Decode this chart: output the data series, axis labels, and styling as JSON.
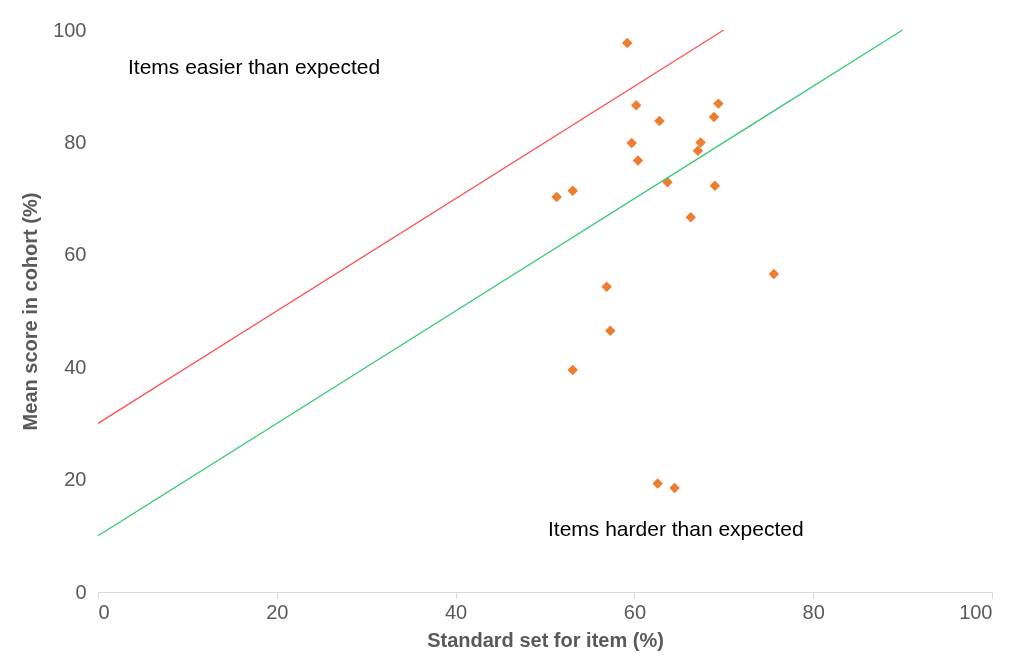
{
  "chart_data": {
    "type": "scatter",
    "xlabel": "Standard set for item (%)",
    "ylabel": "Mean score in cohort (%)",
    "xlim": [
      0,
      100
    ],
    "xticks": [
      0,
      20,
      40,
      60,
      80,
      100
    ],
    "ylim": [
      0,
      100
    ],
    "yticks": [
      0,
      20,
      40,
      60,
      80,
      100
    ],
    "grid": false,
    "marker": "diamond",
    "annotations": [
      "Items easier than expected",
      "Items harder than expected"
    ],
    "series": [
      {
        "color": "#ed7d31",
        "x": [
          59.2,
          60.2,
          69.4,
          62.8,
          68.9,
          59.7,
          67.4,
          67.1,
          60.4,
          63.7,
          69.0,
          53.1,
          51.3,
          66.3,
          75.6,
          56.9,
          57.3,
          53.1,
          62.6,
          64.5
        ],
        "values": [
          97.7,
          86.6,
          86.9,
          83.8,
          84.5,
          79.9,
          80.0,
          78.5,
          76.8,
          72.9,
          72.3,
          71.4,
          70.3,
          66.7,
          56.6,
          54.3,
          46.5,
          39.5,
          19.3,
          18.5
        ]
      },
      {
        "type": "line",
        "color": "#ff5050",
        "x": [
          0,
          70
        ],
        "values": [
          30,
          100
        ],
        "line_style": "solid",
        "marker": "none"
      },
      {
        "type": "line",
        "color": "#3cc878",
        "x": [
          0,
          90
        ],
        "values": [
          10,
          100
        ],
        "line_style": "solid",
        "marker": "none"
      }
    ]
  }
}
